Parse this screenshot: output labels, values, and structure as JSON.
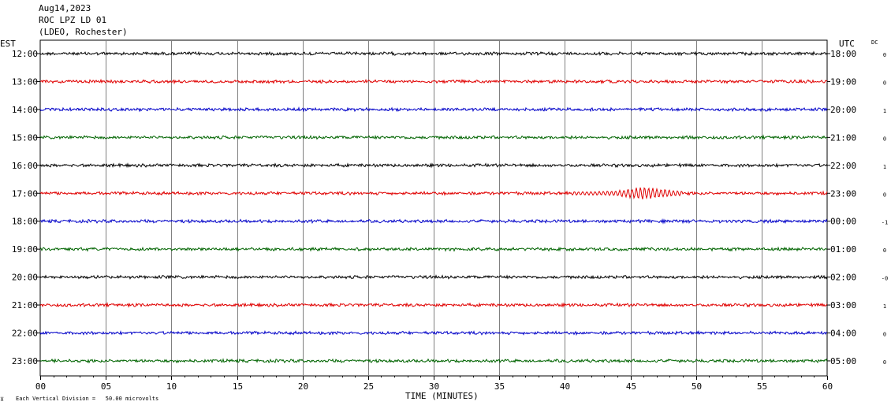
{
  "header": {
    "date": "Aug14,2023",
    "station": "ROC LPZ LD 01",
    "network": "(LDEO, Rochester)"
  },
  "left_axis_label": "EST",
  "right_axis_label": "UTC",
  "dc_label": "DC",
  "footer": {
    "scale_note": "Each Vertical Division =   50.00 microvolts",
    "time_label": "TIME (MINUTES)"
  },
  "colors": {
    "trace_cycle": [
      "#000000",
      "#e00000",
      "#0000c8",
      "#006400"
    ],
    "grid": "#808080"
  },
  "chart_data": {
    "type": "line",
    "title": "ROC LPZ LD 01",
    "xlabel": "TIME (MINUTES)",
    "xlim": [
      0,
      60
    ],
    "x_ticks": [
      "00",
      "05",
      "10",
      "15",
      "20",
      "25",
      "30",
      "35",
      "40",
      "45",
      "50",
      "55",
      "60"
    ],
    "rows": [
      {
        "est": "12:00",
        "utc": "18:00",
        "dc": "0"
      },
      {
        "est": "13:00",
        "utc": "19:00",
        "dc": "0"
      },
      {
        "est": "14:00",
        "utc": "20:00",
        "dc": "1"
      },
      {
        "est": "15:00",
        "utc": "21:00",
        "dc": "0"
      },
      {
        "est": "16:00",
        "utc": "22:00",
        "dc": "1"
      },
      {
        "est": "17:00",
        "utc": "23:00",
        "dc": "0"
      },
      {
        "est": "18:00",
        "utc": "00:00",
        "dc": "-1"
      },
      {
        "est": "19:00",
        "utc": "01:00",
        "dc": "0"
      },
      {
        "est": "20:00",
        "utc": "02:00",
        "dc": "-0"
      },
      {
        "est": "21:00",
        "utc": "03:00",
        "dc": "1"
      },
      {
        "est": "22:00",
        "utc": "04:00",
        "dc": "0"
      },
      {
        "est": "23:00",
        "utc": "05:00",
        "dc": "0"
      }
    ],
    "events": [
      {
        "row": 5,
        "start_min": 40.5,
        "end_min": 49,
        "peak_min": 46.5
      }
    ]
  }
}
